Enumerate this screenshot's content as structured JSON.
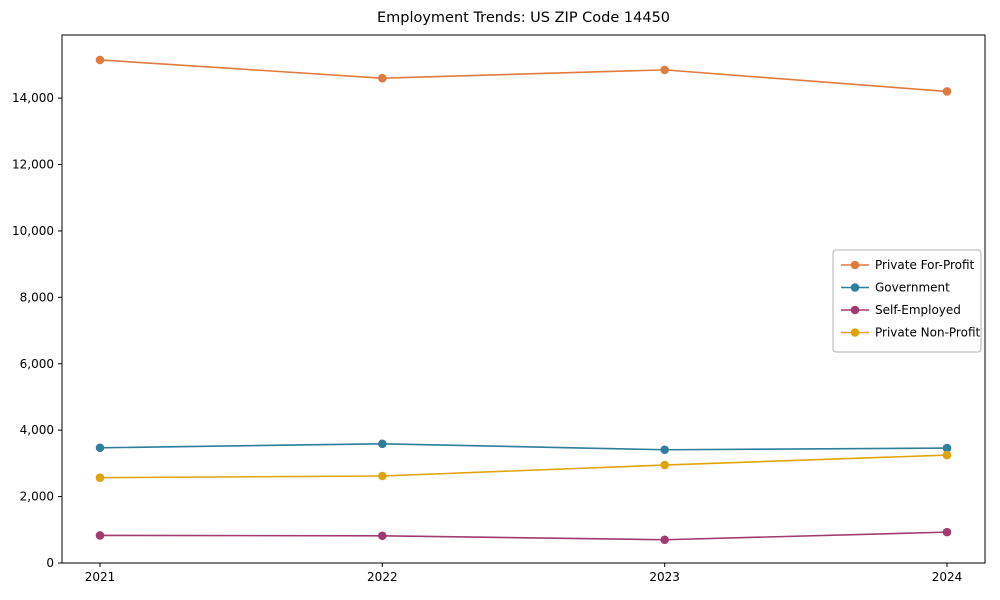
{
  "chart_data": {
    "type": "line",
    "title": "Employment Trends: US ZIP Code 14450",
    "xlabel": "",
    "ylabel": "",
    "categories": [
      "2021",
      "2022",
      "2023",
      "2024"
    ],
    "series": [
      {
        "name": "Private For-Profit",
        "color": "#e07b3e",
        "values": [
          15150,
          14600,
          14850,
          14200
        ]
      },
      {
        "name": "Government",
        "color": "#2e7e9c",
        "values": [
          3470,
          3590,
          3410,
          3460
        ]
      },
      {
        "name": "Self-Employed",
        "color": "#a23a71",
        "values": [
          830,
          820,
          700,
          930
        ]
      },
      {
        "name": "Private Non-Profit",
        "color": "#e0a408",
        "values": [
          2570,
          2620,
          2950,
          3250
        ]
      }
    ],
    "ylim": [
      0,
      15900
    ],
    "yticks": [
      0,
      2000,
      4000,
      6000,
      8000,
      10000,
      12000,
      14000
    ],
    "ytick_labels": [
      "0",
      "2,000",
      "4,000",
      "6,000",
      "8,000",
      "10,000",
      "12,000",
      "14,000"
    ],
    "grid": false,
    "legend_position": "center right",
    "marker": "circle",
    "axis_color": "#000000",
    "legend_border_color": "#b0b0b0"
  }
}
